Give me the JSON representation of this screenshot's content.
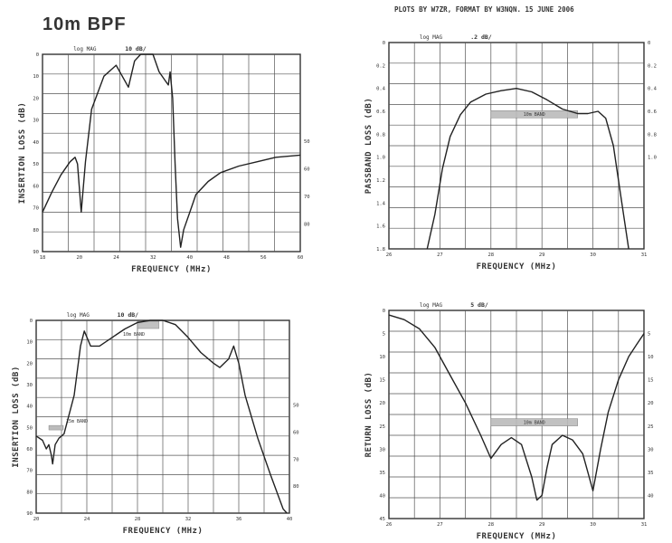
{
  "figure": {
    "title": "10m BPF",
    "credit": "PLOTS BY W7ZR, FORMAT BY W3NQN. 15 JUNE 2006"
  },
  "chart_data": [
    {
      "type": "line",
      "scale_label": "log MAG",
      "div_label": "10 dB/",
      "ylabel": "INSERTION LOSS (dB)",
      "xlabel": "FREQUENCY (MHz)",
      "xlim": [
        18,
        60
      ],
      "ylim": [
        0,
        90
      ],
      "x_ticks": [
        "18",
        "20",
        "24",
        "32",
        "40",
        "48",
        "56",
        "60"
      ],
      "y_ticks": [
        "0",
        "10",
        "20",
        "30",
        "40",
        "50",
        "60",
        "70",
        "80",
        "90"
      ],
      "right_ticks": [
        "50",
        "60",
        "70",
        "80"
      ],
      "band_label": "",
      "series": [
        {
          "x": [
            18,
            19.5,
            21,
            22.5,
            23.3,
            23.7,
            24.3,
            25,
            26,
            28,
            30,
            32,
            33,
            34,
            35,
            36,
            37,
            38,
            38.5,
            38.8,
            39.2,
            39.6,
            40,
            40.5,
            41,
            42,
            43,
            45,
            47,
            50,
            53,
            56,
            60
          ],
          "y": [
            72,
            63,
            55,
            49,
            47,
            50,
            72,
            49,
            25,
            10,
            5,
            15,
            3,
            0,
            0,
            0,
            8,
            12,
            14,
            8,
            20,
            50,
            75,
            88,
            80,
            72,
            64,
            58,
            54,
            51,
            49,
            47,
            46
          ]
        }
      ]
    },
    {
      "type": "line",
      "scale_label": "log MAG",
      "div_label": ".2 dB/",
      "ylabel": "PASSBAND LOSS (dB)",
      "xlabel": "FREQUENCY (MHz)",
      "xlim": [
        26,
        31
      ],
      "ylim": [
        0,
        1.8
      ],
      "x_ticks": [
        "26",
        "27",
        "28",
        "29",
        "30",
        "31"
      ],
      "y_ticks": [
        "0",
        "0.2",
        "0.4",
        "0.6",
        "0.8",
        "1.0",
        "1.2",
        "1.4",
        "1.6",
        "1.8"
      ],
      "right_ticks": [
        "0",
        "0.2",
        "0.4",
        "0.6",
        "0.8",
        "1.0"
      ],
      "band_label": "10m BAND",
      "band_range": [
        28,
        29.7
      ],
      "series": [
        {
          "x": [
            26.75,
            26.9,
            27.05,
            27.2,
            27.4,
            27.6,
            27.9,
            28.2,
            28.5,
            28.8,
            29.1,
            29.4,
            29.7,
            29.9,
            30.1,
            30.25,
            30.4,
            30.55,
            30.7
          ],
          "y": [
            1.8,
            1.5,
            1.1,
            0.82,
            0.63,
            0.52,
            0.45,
            0.42,
            0.4,
            0.43,
            0.5,
            0.58,
            0.62,
            0.62,
            0.6,
            0.66,
            0.9,
            1.35,
            1.8
          ]
        }
      ]
    },
    {
      "type": "line",
      "scale_label": "log MAG",
      "div_label": "10 dB/",
      "ylabel": "INSERTION LOSS (dB)",
      "xlabel": "FREQUENCY (MHz)",
      "xlim": [
        20,
        40
      ],
      "ylim": [
        0,
        90
      ],
      "x_ticks": [
        "20",
        "24",
        "28",
        "32",
        "36",
        "40"
      ],
      "y_ticks": [
        "0",
        "10",
        "20",
        "30",
        "40",
        "50",
        "60",
        "70",
        "80",
        "90"
      ],
      "right_ticks": [
        "50",
        "60",
        "70",
        "80"
      ],
      "band_label": "10m BAND",
      "band_label2": "15m BAND",
      "band_range": [
        28,
        29.7
      ],
      "series": [
        {
          "x": [
            20,
            20.5,
            20.8,
            21,
            21.2,
            21.3,
            21.5,
            21.8,
            22.2,
            23,
            23.5,
            23.8,
            24.3,
            25,
            26,
            27,
            28,
            29,
            30,
            31,
            32,
            33,
            34,
            34.5,
            35.2,
            35.6,
            36,
            36.5,
            37.5,
            38.5,
            39.5,
            39.8
          ],
          "y": [
            54,
            56,
            60,
            58,
            63,
            67,
            58,
            55,
            53,
            35,
            12,
            5,
            12,
            12,
            8,
            4,
            1,
            0,
            0,
            2,
            8,
            15,
            20,
            22,
            18,
            12,
            20,
            35,
            55,
            72,
            88,
            90
          ]
        }
      ]
    },
    {
      "type": "line",
      "scale_label": "log MAG",
      "div_label": "5 dB/",
      "ylabel": "RETURN LOSS (dB)",
      "xlabel": "FREQUENCY (MHz)",
      "xlim": [
        26,
        31
      ],
      "ylim": [
        0,
        45
      ],
      "x_ticks": [
        "26",
        "27",
        "28",
        "29",
        "30",
        "31"
      ],
      "y_ticks": [
        "0",
        "5",
        "10",
        "15",
        "20",
        "25",
        "30",
        "35",
        "40",
        "45"
      ],
      "right_ticks": [
        "5",
        "10",
        "15",
        "20",
        "25",
        "30",
        "35",
        "40"
      ],
      "band_label": "10m BAND",
      "band_range": [
        28,
        29.7
      ],
      "series": [
        {
          "x": [
            26,
            26.3,
            26.6,
            26.9,
            27.2,
            27.5,
            27.8,
            28,
            28.2,
            28.4,
            28.6,
            28.8,
            28.9,
            29,
            29.1,
            29.2,
            29.4,
            29.6,
            29.8,
            29.9,
            30,
            30.15,
            30.3,
            30.5,
            30.7,
            30.85,
            31
          ],
          "y": [
            1,
            2,
            4,
            8,
            14,
            20,
            27,
            32,
            29,
            27.5,
            29,
            36,
            41,
            40,
            34,
            29,
            27,
            28,
            31,
            35,
            39,
            30,
            22,
            15,
            10,
            7.5,
            5
          ]
        }
      ]
    }
  ]
}
